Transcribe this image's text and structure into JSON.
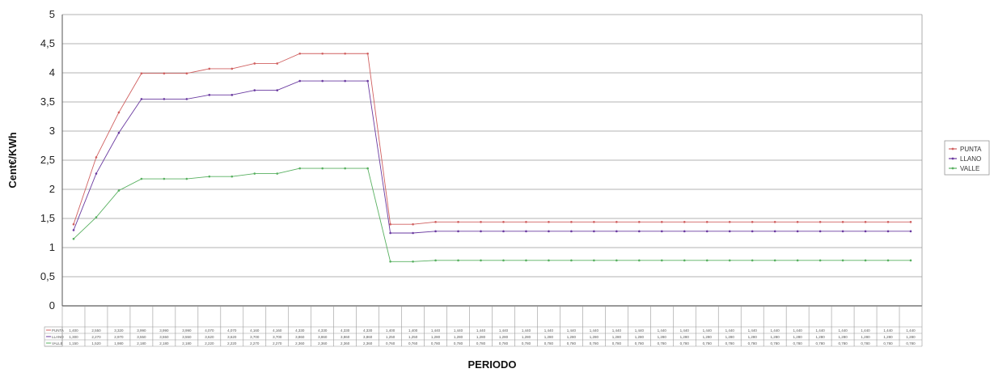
{
  "chart_data": {
    "type": "line",
    "title": "",
    "xlabel": "PERIODO",
    "ylabel": "Cent€/KWh",
    "ylim": [
      0,
      5
    ],
    "yticks": [
      "0",
      "0,5",
      "1",
      "1,5",
      "2",
      "2,5",
      "3",
      "3,5",
      "4",
      "4,5",
      "5"
    ],
    "grid": true,
    "legend": "right",
    "x": [
      1,
      2,
      3,
      4,
      5,
      6,
      7,
      8,
      9,
      10,
      11,
      12,
      13,
      14,
      15,
      16,
      17,
      18,
      19,
      20,
      21,
      22,
      23,
      24,
      25,
      26,
      27,
      28,
      29,
      30,
      31,
      32,
      33,
      34,
      35,
      36,
      37,
      38
    ],
    "series": [
      {
        "name": "PUNTA",
        "color": "#d06060",
        "values": [
          1.4,
          2.55,
          3.32,
          3.99,
          3.99,
          3.99,
          4.07,
          4.07,
          4.16,
          4.16,
          4.33,
          4.33,
          4.33,
          4.33,
          1.4,
          1.4,
          1.44,
          1.44,
          1.44,
          1.44,
          1.44,
          1.44,
          1.44,
          1.44,
          1.44,
          1.44,
          1.44,
          1.44,
          1.44,
          1.44,
          1.44,
          1.44,
          1.44,
          1.44,
          1.44,
          1.44,
          1.44,
          1.44
        ]
      },
      {
        "name": "LLANO",
        "color": "#6a3aa0",
        "values": [
          1.3,
          2.27,
          2.97,
          3.55,
          3.55,
          3.55,
          3.62,
          3.62,
          3.7,
          3.7,
          3.86,
          3.86,
          3.86,
          3.86,
          1.25,
          1.25,
          1.28,
          1.28,
          1.28,
          1.28,
          1.28,
          1.28,
          1.28,
          1.28,
          1.28,
          1.28,
          1.28,
          1.28,
          1.28,
          1.28,
          1.28,
          1.28,
          1.28,
          1.28,
          1.28,
          1.28,
          1.28,
          1.28
        ]
      },
      {
        "name": "VALLE",
        "color": "#58b060",
        "values": [
          1.15,
          1.52,
          1.98,
          2.18,
          2.18,
          2.18,
          2.22,
          2.22,
          2.27,
          2.27,
          2.36,
          2.36,
          2.36,
          2.36,
          0.76,
          0.76,
          0.78,
          0.78,
          0.78,
          0.78,
          0.78,
          0.78,
          0.78,
          0.78,
          0.78,
          0.78,
          0.78,
          0.78,
          0.78,
          0.78,
          0.78,
          0.78,
          0.78,
          0.78,
          0.78,
          0.78,
          0.78,
          0.78
        ]
      }
    ]
  }
}
